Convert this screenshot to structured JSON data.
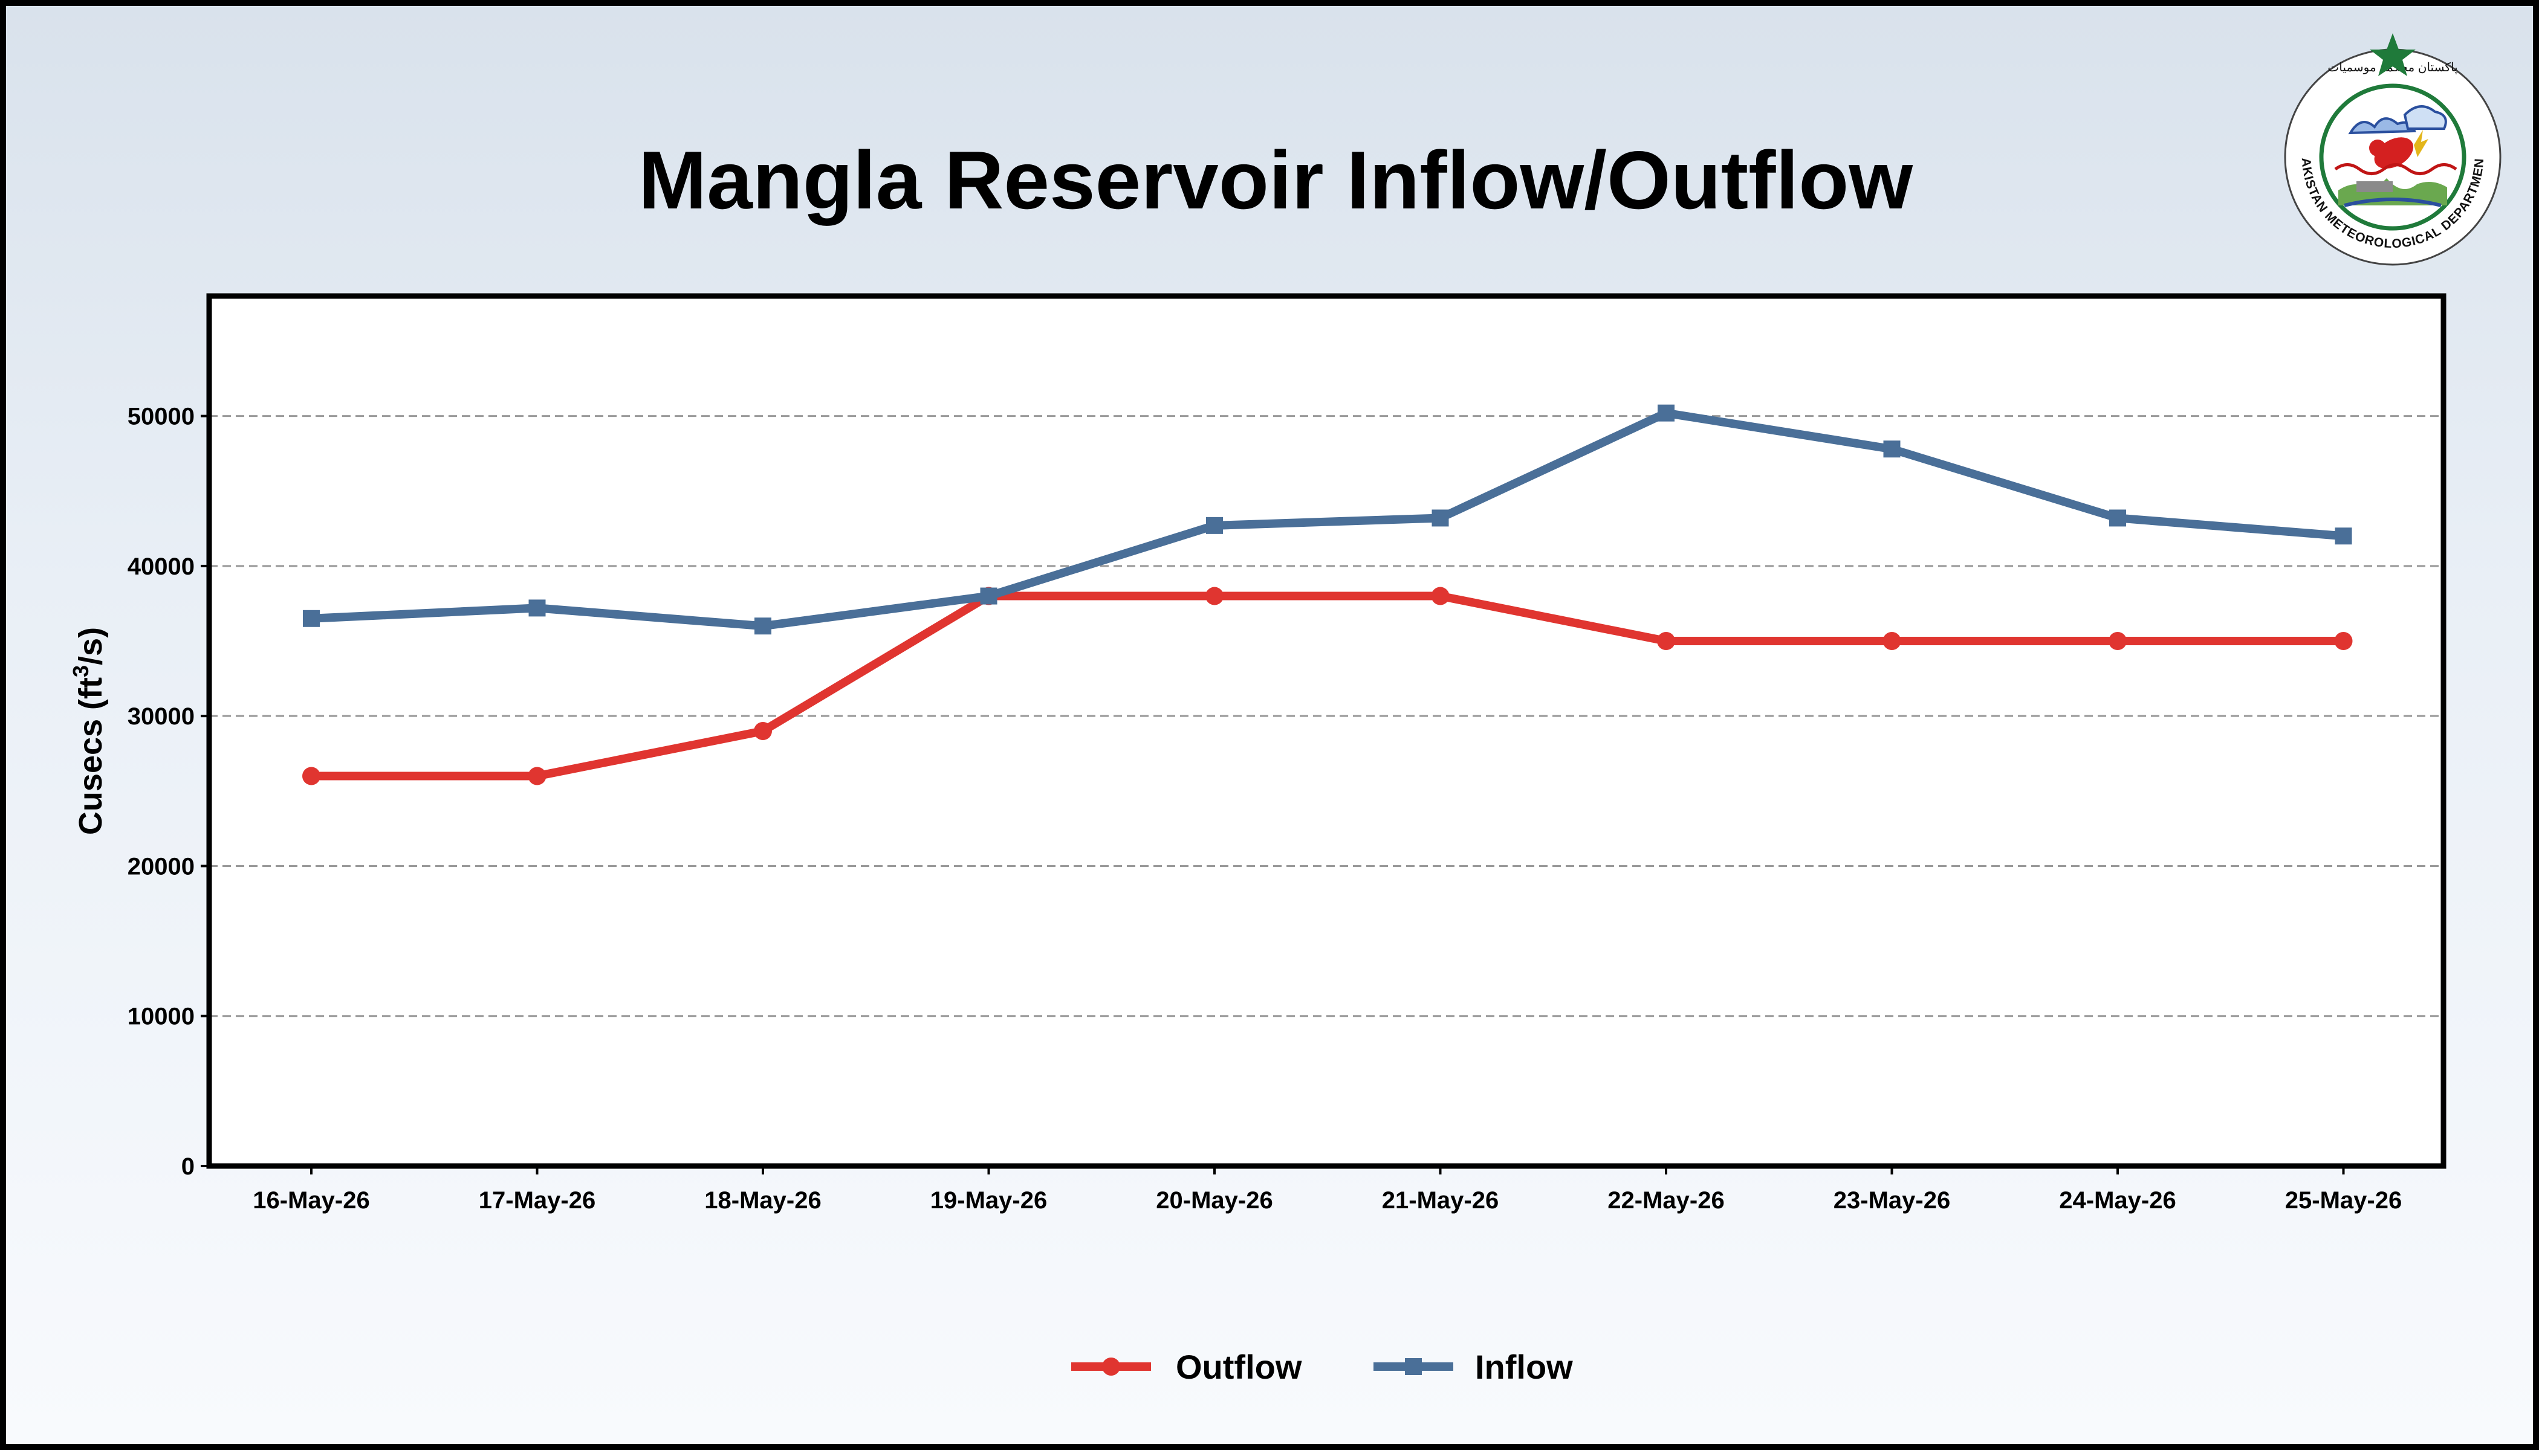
{
  "logo": {
    "text": "PAKISTAN METEOROLOGICAL DEPARTMENT",
    "urdu_text": "پاکستان محکمہ موسمیات"
  },
  "chart_data": {
    "type": "line",
    "title": "Mangla Reservoir Inflow/Outflow",
    "xlabel": "",
    "ylabel": "Cusecs (ft",
    "ylabel_superscript": "3",
    "ylabel_suffix": "/s)",
    "categories": [
      "16-May-26",
      "17-May-26",
      "18-May-26",
      "19-May-26",
      "20-May-26",
      "21-May-26",
      "22-May-26",
      "23-May-26",
      "24-May-26",
      "25-May-26"
    ],
    "series": [
      {
        "name": "Outflow",
        "color": "#e03530",
        "marker": "circle",
        "values": [
          26000,
          26000,
          29000,
          38000,
          38000,
          38000,
          35000,
          35000,
          35000,
          35000
        ]
      },
      {
        "name": "Inflow",
        "color": "#4a6f98",
        "marker": "square",
        "values": [
          36500,
          37200,
          36000,
          38000,
          42700,
          43200,
          50200,
          47800,
          43200,
          42000
        ]
      }
    ],
    "ylim": [
      0,
      58000
    ],
    "yticks": [
      0,
      10000,
      20000,
      30000,
      40000,
      50000
    ],
    "ytick_labels": [
      "0",
      "10000",
      "20000",
      "30000",
      "40000",
      "50000"
    ],
    "grid": "horizontal dashed",
    "legend": "bottom-center"
  }
}
